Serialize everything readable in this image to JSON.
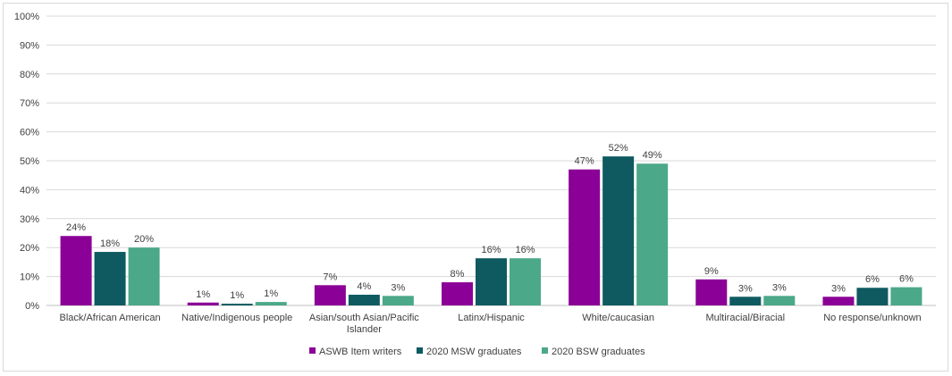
{
  "chart_data": {
    "type": "bar",
    "title": "",
    "xlabel": "",
    "ylabel": "",
    "ylim": [
      0,
      100
    ],
    "yticks": [
      "0%",
      "10%",
      "20%",
      "30%",
      "40%",
      "50%",
      "60%",
      "70%",
      "80%",
      "90%",
      "100%"
    ],
    "grid": true,
    "legend_position": "bottom",
    "categories": [
      [
        "Black/African American"
      ],
      [
        "Native/Indigenous people"
      ],
      [
        "Asian/south Asian/Pacific",
        "Islander"
      ],
      [
        "Latinx/Hispanic"
      ],
      [
        "White/caucasian"
      ],
      [
        "Multiracial/Biracial"
      ],
      [
        "No response/unknown"
      ]
    ],
    "series": [
      {
        "name": "ASWB Item writers",
        "color": "#8B0096",
        "values": [
          24,
          1,
          7,
          8,
          47,
          9,
          3
        ],
        "labels": [
          "24%",
          "1%",
          "7%",
          "8%",
          "47%",
          "9%",
          "3%"
        ]
      },
      {
        "name": "2020 MSW graduates",
        "color": "#0E5A60",
        "values": [
          18.5,
          0.6,
          3.7,
          16.3,
          51.5,
          3,
          6.1
        ],
        "labels": [
          "18%",
          "1%",
          "4%",
          "16%",
          "52%",
          "3%",
          "6%"
        ]
      },
      {
        "name": "2020 BSW graduates",
        "color": "#4BA888",
        "values": [
          20,
          1.2,
          3.3,
          16.3,
          49,
          3.3,
          6.3
        ],
        "labels": [
          "20%",
          "1%",
          "3%",
          "16%",
          "49%",
          "3%",
          "6%"
        ]
      }
    ]
  }
}
